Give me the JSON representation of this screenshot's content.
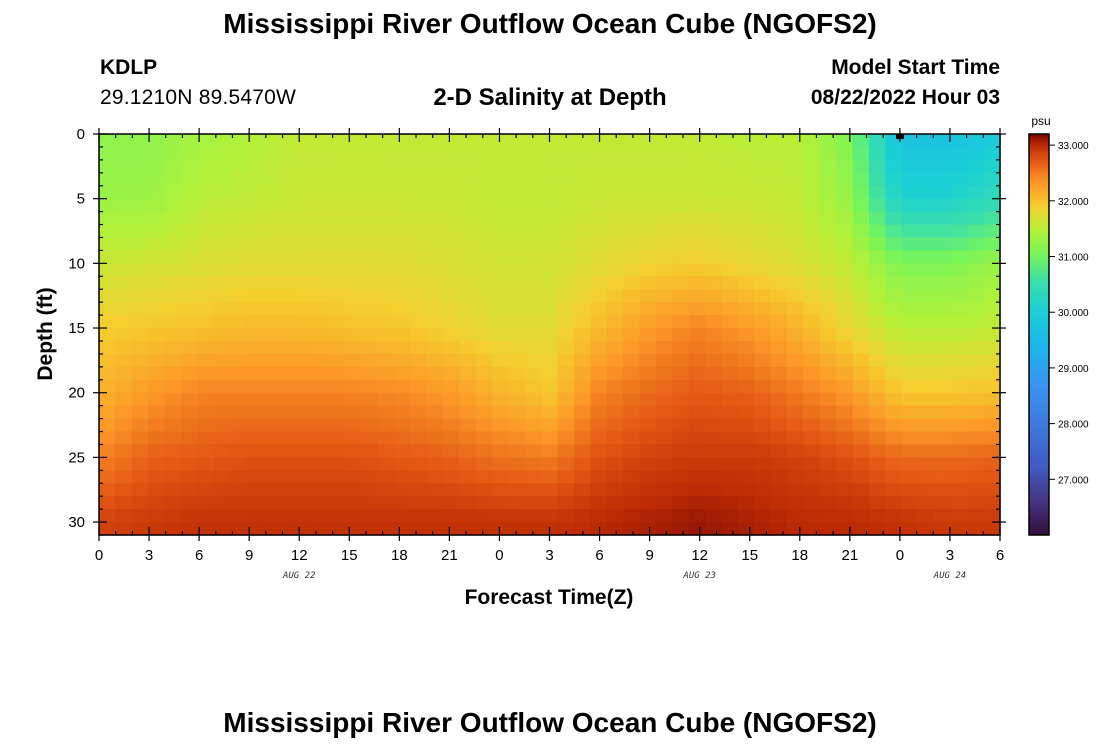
{
  "header": {
    "title": "Mississippi River Outflow Ocean Cube (NGOFS2)",
    "station_id": "KDLP",
    "station_coords": "29.1210N  89.5470W",
    "subtitle": "2-D Salinity at Depth",
    "model_label": "Model Start Time",
    "model_time": "08/22/2022 Hour 03"
  },
  "footer": {
    "title": "Mississippi River Outflow Ocean Cube (NGOFS2)"
  },
  "chart_data": {
    "type": "heatmap",
    "xlabel": "Forecast Time(Z)",
    "ylabel": "Depth (ft)",
    "x_range_hours": [
      0,
      54
    ],
    "x_tick_labels": [
      "0",
      "3",
      "6",
      "9",
      "12",
      "15",
      "18",
      "21",
      "0",
      "3",
      "6",
      "9",
      "12",
      "15",
      "18",
      "21",
      "0",
      "3",
      "6"
    ],
    "x_date_labels": [
      {
        "label": "AUG 22",
        "hour": 12
      },
      {
        "label": "AUG 23",
        "hour": 36
      },
      {
        "label": "AUG 24",
        "hour": 51
      }
    ],
    "y_range_ft": [
      0,
      31
    ],
    "y_ticks": [
      0,
      5,
      10,
      15,
      20,
      25,
      30
    ],
    "colorbar": {
      "unit": "psu",
      "range": [
        26.0,
        33.2
      ],
      "tick_values": [
        33.0,
        32.0,
        31.0,
        30.0,
        29.0,
        28.0,
        27.0
      ],
      "tick_labels": [
        "33.000",
        "32.000",
        "31.000",
        "30.000",
        "29.000",
        "28.000",
        "27.000"
      ]
    },
    "grid_resolution": {
      "time_steps": 55,
      "depth_levels": 31
    },
    "profile_keyframes": {
      "hours": [
        0,
        3,
        6,
        9,
        12,
        15,
        18,
        21,
        24,
        27,
        30,
        33,
        36,
        39,
        42,
        45,
        48,
        51,
        54
      ],
      "depth_ft": [
        0,
        5,
        10,
        15,
        20,
        25,
        30
      ],
      "salinity_psu": [
        [
          31.2,
          31.3,
          31.6,
          31.9,
          32.1,
          32.45,
          32.85
        ],
        [
          31.2,
          31.3,
          31.65,
          31.95,
          32.3,
          32.65,
          32.9
        ],
        [
          31.35,
          31.5,
          31.7,
          32.0,
          32.45,
          32.7,
          32.95
        ],
        [
          31.45,
          31.55,
          31.75,
          32.05,
          32.45,
          32.75,
          32.95
        ],
        [
          31.55,
          31.6,
          31.75,
          32.05,
          32.45,
          32.75,
          32.95
        ],
        [
          31.55,
          31.6,
          31.75,
          32.0,
          32.45,
          32.75,
          32.95
        ],
        [
          31.55,
          31.6,
          31.75,
          31.95,
          32.4,
          32.7,
          32.95
        ],
        [
          31.55,
          31.6,
          31.7,
          31.85,
          32.3,
          32.65,
          32.95
        ],
        [
          31.55,
          31.55,
          31.65,
          31.75,
          32.1,
          32.55,
          32.95
        ],
        [
          31.55,
          31.55,
          31.65,
          31.75,
          31.95,
          32.5,
          32.95
        ],
        [
          31.55,
          31.6,
          31.75,
          32.05,
          32.45,
          32.75,
          33.0
        ],
        [
          31.55,
          31.6,
          31.85,
          32.3,
          32.6,
          32.85,
          33.05
        ],
        [
          31.55,
          31.6,
          31.9,
          32.45,
          32.7,
          32.9,
          33.1
        ],
        [
          31.5,
          31.6,
          31.8,
          32.3,
          32.65,
          32.9,
          33.05
        ],
        [
          31.5,
          31.55,
          31.7,
          32.1,
          32.5,
          32.85,
          33.0
        ],
        [
          31.1,
          31.25,
          31.55,
          31.8,
          32.3,
          32.75,
          33.0
        ],
        [
          29.7,
          30.1,
          31.1,
          31.5,
          31.95,
          32.6,
          32.95
        ],
        [
          29.7,
          30.1,
          31.1,
          31.5,
          31.95,
          32.6,
          32.9
        ],
        [
          29.9,
          30.4,
          31.3,
          31.55,
          32.0,
          32.65,
          32.9
        ]
      ]
    }
  }
}
